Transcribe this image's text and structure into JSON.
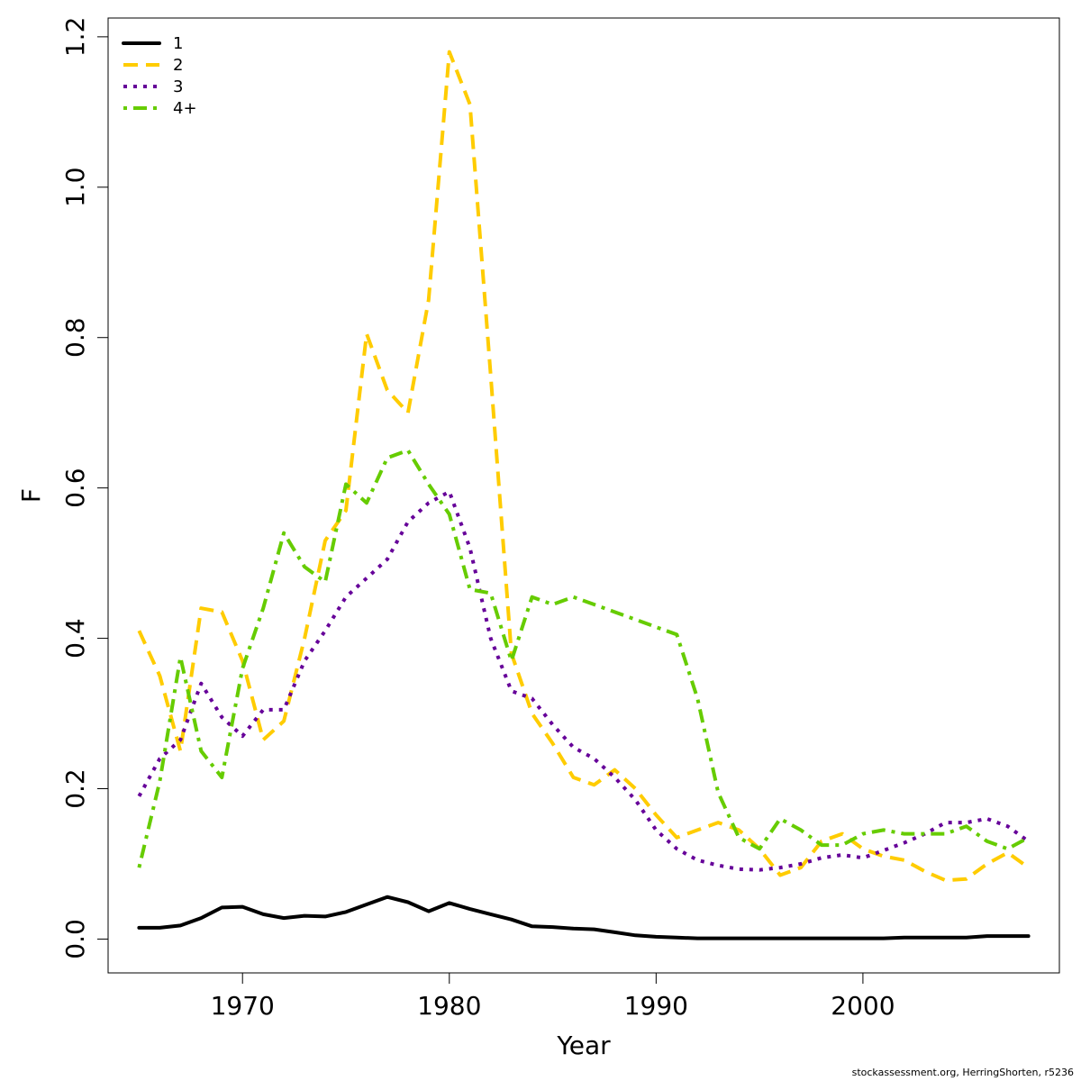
{
  "chart_data": {
    "type": "line",
    "xlabel": "Year",
    "ylabel": "F",
    "xlim": [
      1963.5,
      2009.5
    ],
    "ylim": [
      -0.045,
      1.225
    ],
    "xticks": [
      1970,
      1980,
      1990,
      2000
    ],
    "yticks": [
      0.0,
      0.2,
      0.4,
      0.6,
      0.8,
      1.0,
      1.2
    ],
    "grid": false,
    "legend_position": "top-left",
    "x": [
      1965,
      1966,
      1967,
      1968,
      1969,
      1970,
      1971,
      1972,
      1973,
      1974,
      1975,
      1976,
      1977,
      1978,
      1979,
      1980,
      1981,
      1982,
      1983,
      1984,
      1985,
      1986,
      1987,
      1988,
      1989,
      1990,
      1991,
      1992,
      1993,
      1994,
      1995,
      1996,
      1997,
      1998,
      1999,
      2000,
      2001,
      2002,
      2003,
      2004,
      2005,
      2006,
      2007,
      2008
    ],
    "series": [
      {
        "name": "1",
        "color": "#000000",
        "dash": "solid",
        "values": [
          0.015,
          0.015,
          0.018,
          0.028,
          0.042,
          0.043,
          0.033,
          0.028,
          0.031,
          0.03,
          0.036,
          0.046,
          0.056,
          0.049,
          0.037,
          0.048,
          0.04,
          0.033,
          0.026,
          0.017,
          0.016,
          0.014,
          0.013,
          0.009,
          0.005,
          0.003,
          0.002,
          0.001,
          0.001,
          0.001,
          0.001,
          0.001,
          0.001,
          0.001,
          0.001,
          0.001,
          0.001,
          0.002,
          0.002,
          0.002,
          0.002,
          0.004,
          0.004,
          0.004
        ]
      },
      {
        "name": "2",
        "color": "#FFCC00",
        "dash": "dashed",
        "values": [
          0.41,
          0.35,
          0.25,
          0.44,
          0.435,
          0.37,
          0.265,
          0.29,
          0.4,
          0.53,
          0.57,
          0.805,
          0.73,
          0.7,
          0.85,
          1.18,
          1.11,
          0.75,
          0.38,
          0.3,
          0.26,
          0.215,
          0.205,
          0.225,
          0.2,
          0.165,
          0.135,
          0.145,
          0.155,
          0.145,
          0.12,
          0.085,
          0.095,
          0.13,
          0.14,
          0.12,
          0.11,
          0.105,
          0.09,
          0.078,
          0.08,
          0.1,
          0.115,
          0.095
        ]
      },
      {
        "name": "3",
        "color": "#660099",
        "dash": "dotted",
        "values": [
          0.19,
          0.24,
          0.265,
          0.34,
          0.295,
          0.27,
          0.305,
          0.305,
          0.37,
          0.41,
          0.455,
          0.48,
          0.505,
          0.555,
          0.58,
          0.595,
          0.52,
          0.4,
          0.33,
          0.32,
          0.285,
          0.255,
          0.24,
          0.215,
          0.185,
          0.145,
          0.12,
          0.105,
          0.098,
          0.093,
          0.092,
          0.095,
          0.1,
          0.108,
          0.112,
          0.108,
          0.118,
          0.128,
          0.14,
          0.155,
          0.155,
          0.16,
          0.15,
          0.13
        ]
      },
      {
        "name": "4+",
        "color": "#66CC00",
        "dash": "dotdash",
        "values": [
          0.095,
          0.21,
          0.375,
          0.25,
          0.215,
          0.36,
          0.44,
          0.54,
          0.495,
          0.475,
          0.605,
          0.58,
          0.64,
          0.65,
          0.605,
          0.565,
          0.465,
          0.46,
          0.37,
          0.455,
          0.445,
          0.455,
          0.445,
          0.435,
          0.425,
          0.415,
          0.405,
          0.32,
          0.195,
          0.135,
          0.12,
          0.16,
          0.145,
          0.125,
          0.125,
          0.14,
          0.145,
          0.14,
          0.14,
          0.14,
          0.15,
          0.13,
          0.12,
          0.135
        ]
      }
    ]
  },
  "footer": {
    "credit": "stockassessment.org, HerringShorten, r5236"
  }
}
